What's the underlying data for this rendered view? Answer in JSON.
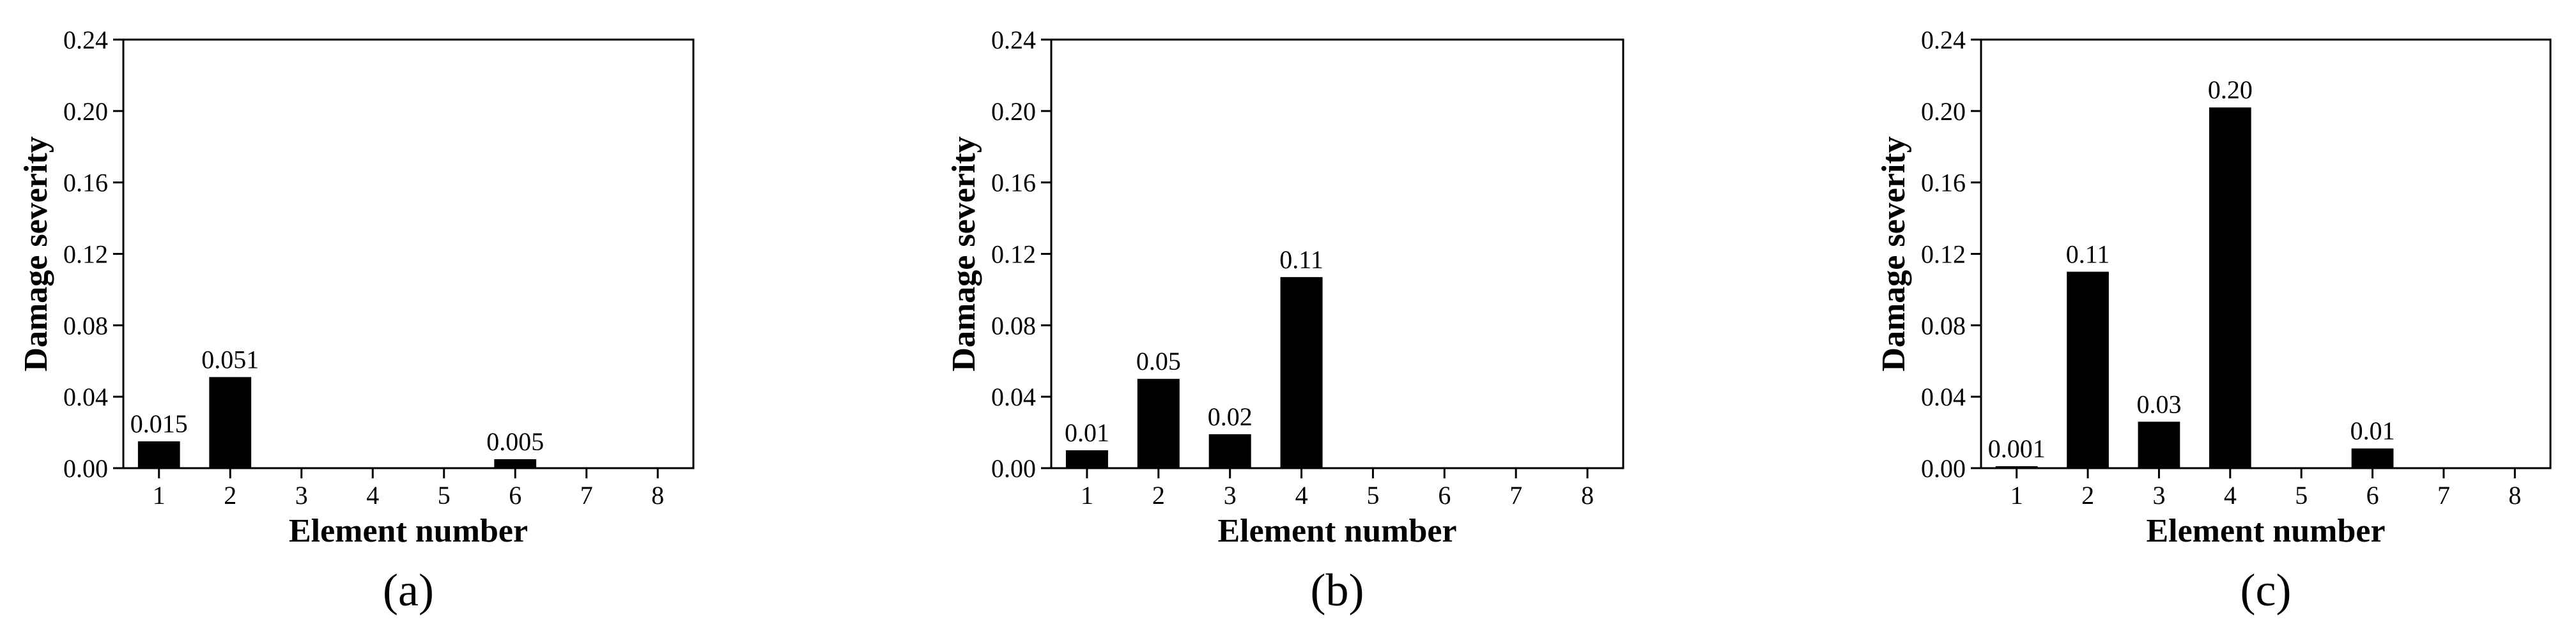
{
  "chart_data": [
    {
      "type": "bar",
      "panel_label": "(a)",
      "categories": [
        "1",
        "2",
        "3",
        "4",
        "5",
        "6",
        "7",
        "8"
      ],
      "values": [
        0.015,
        0.051,
        0,
        0,
        0,
        0.005,
        0,
        0
      ],
      "value_labels": [
        "0.015",
        "0.051",
        "",
        "",
        "",
        "0.005",
        "",
        ""
      ],
      "xlabel": "Element number",
      "ylabel": "Damage severity",
      "ylim": [
        0,
        0.24
      ],
      "yticks": [
        "0.00",
        "0.04",
        "0.08",
        "0.12",
        "0.16",
        "0.20",
        "0.24"
      ],
      "bar_color": "#000000",
      "grid": false
    },
    {
      "type": "bar",
      "panel_label": "(b)",
      "categories": [
        "1",
        "2",
        "3",
        "4",
        "5",
        "6",
        "7",
        "8"
      ],
      "values": [
        0.01,
        0.05,
        0.019,
        0.107,
        0,
        0,
        0,
        0
      ],
      "value_labels": [
        "0.01",
        "0.05",
        "0.02",
        "0.11",
        "",
        "",
        "",
        ""
      ],
      "xlabel": "Element number",
      "ylabel": "Damage severity",
      "ylim": [
        0,
        0.24
      ],
      "yticks": [
        "0.00",
        "0.04",
        "0.08",
        "0.12",
        "0.16",
        "0.20",
        "0.24"
      ],
      "bar_color": "#000000",
      "grid": false
    },
    {
      "type": "bar",
      "panel_label": "(c)",
      "categories": [
        "1",
        "2",
        "3",
        "4",
        "5",
        "6",
        "7",
        "8"
      ],
      "values": [
        0.001,
        0.11,
        0.026,
        0.202,
        0,
        0.011,
        0,
        0
      ],
      "value_labels": [
        "0.001",
        "0.11",
        "0.03",
        "0.20",
        "",
        "0.01",
        "",
        ""
      ],
      "xlabel": "Element number",
      "ylabel": "Damage severity",
      "ylim": [
        0,
        0.24
      ],
      "yticks": [
        "0.00",
        "0.04",
        "0.08",
        "0.12",
        "0.16",
        "0.20",
        "0.24"
      ],
      "bar_color": "#000000",
      "grid": false
    }
  ]
}
